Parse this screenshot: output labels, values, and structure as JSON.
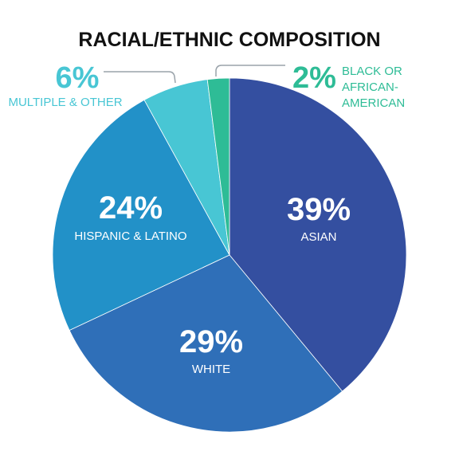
{
  "chart_data": {
    "type": "pie",
    "title": "RACIAL/ETHNIC COMPOSITION",
    "start": "12 o'clock",
    "direction": "clockwise",
    "slices": [
      {
        "label": "ASIAN",
        "value": 39,
        "display": "39%",
        "color": "#344fa0"
      },
      {
        "label": "WHITE",
        "value": 29,
        "display": "29%",
        "color": "#2f6fb8"
      },
      {
        "label": "HISPANIC & LATINO",
        "value": 24,
        "display": "24%",
        "color": "#2291c8"
      },
      {
        "label": "MULTIPLE & OTHER",
        "value": 6,
        "display": "6%",
        "color": "#48c6d4"
      },
      {
        "label": "BLACK OR AFRICAN-AMERICAN",
        "value": 2,
        "display": "2%",
        "color": "#2ebc96"
      }
    ],
    "callouts": {
      "multiple": {
        "pct": "6%",
        "label": "MULTIPLE & OTHER",
        "color": "#48c6d4"
      },
      "black": {
        "pct": "2%",
        "lines": [
          "BLACK OR",
          "AFRICAN-",
          "AMERICAN"
        ],
        "color": "#2ebc96"
      }
    },
    "leader_line_color": "#9aa3aa"
  }
}
